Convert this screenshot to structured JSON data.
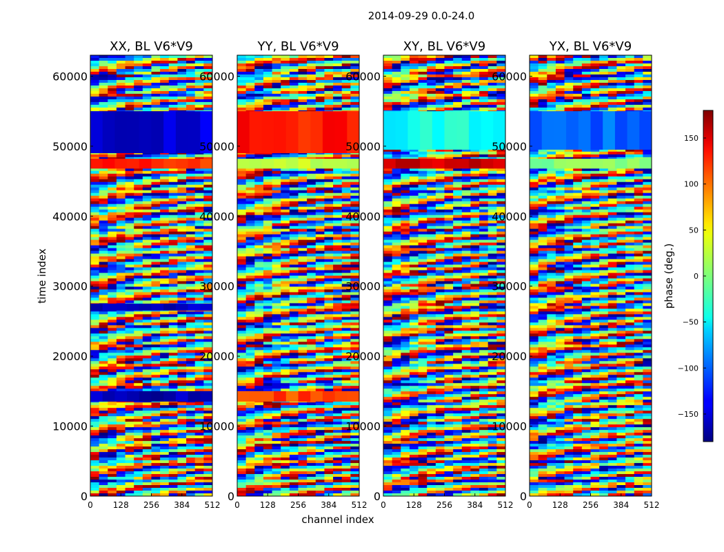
{
  "chart_data": {
    "type": "heatmap",
    "suptitle": "2014-09-29 0.0-24.0",
    "xlabel": "channel index",
    "ylabel": "time index",
    "xlim": [
      0,
      512
    ],
    "ylim": [
      0,
      63000
    ],
    "xticks": [
      0,
      128,
      256,
      384,
      512
    ],
    "xtick_labels": [
      "0",
      "128",
      "256",
      "384",
      "512"
    ],
    "yticks": [
      0,
      10000,
      20000,
      30000,
      40000,
      50000,
      60000
    ],
    "ytick_labels": [
      "0",
      "10000",
      "20000",
      "30000",
      "40000",
      "50000",
      "60000"
    ],
    "colormap": "jet",
    "colorbar": {
      "label": "phase (deg.)",
      "range": [
        -180,
        180
      ],
      "ticks": [
        -150,
        -100,
        -50,
        0,
        50,
        100,
        150
      ],
      "tick_labels": [
        "−150",
        "−100",
        "−50",
        "0",
        "50",
        "100",
        "150"
      ]
    },
    "panels": [
      {
        "title": "XX, BL V6*V9",
        "features": [
          {
            "t0": 49000,
            "t1": 55000,
            "phase": -150,
            "label": "strong negative phase band"
          },
          {
            "t0": 46800,
            "t1": 48200,
            "phase": 120,
            "label": "positive phase band"
          },
          {
            "t0": 26500,
            "t1": 27500,
            "phase": -160,
            "label": "negative patch"
          },
          {
            "t0": 13500,
            "t1": 15000,
            "phase": -160,
            "label": "negative patch"
          }
        ]
      },
      {
        "title": "YY, BL V6*V9",
        "features": [
          {
            "t0": 49000,
            "t1": 55000,
            "phase": 125,
            "label": "strong positive phase band"
          },
          {
            "t0": 46800,
            "t1": 48200,
            "phase": 20,
            "label": "green band"
          },
          {
            "t0": 13500,
            "t1": 15000,
            "phase": 110,
            "label": "positive patch"
          }
        ]
      },
      {
        "title": "XY, BL V6*V9",
        "features": [
          {
            "t0": 49500,
            "t1": 55000,
            "phase": -40,
            "label": "cyan band"
          },
          {
            "t0": 46800,
            "t1": 48200,
            "phase": 150,
            "label": "red band"
          }
        ]
      },
      {
        "title": "YX, BL V6*V9",
        "features": [
          {
            "t0": 49500,
            "t1": 55000,
            "phase": -100,
            "label": "blue band"
          },
          {
            "t0": 46800,
            "t1": 48200,
            "phase": 0,
            "label": "green band"
          }
        ]
      }
    ]
  }
}
